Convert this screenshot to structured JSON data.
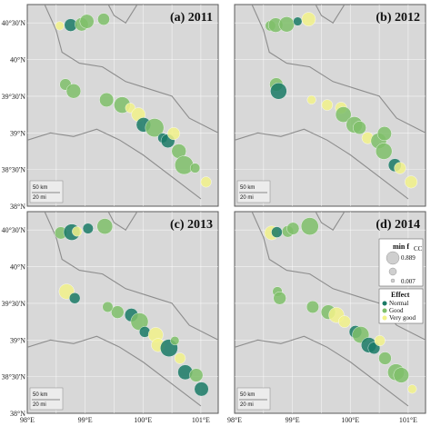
{
  "panels": [
    {
      "title": "(a) 2011",
      "year": 2011
    },
    {
      "title": "(b) 2012",
      "year": 2012
    },
    {
      "title": "(c) 2013",
      "year": 2013
    },
    {
      "title": "(d) 2014",
      "year": 2014
    }
  ],
  "axes": {
    "lat_ticks": [
      "40°30'N",
      "40°N",
      "39°30'N",
      "39°N",
      "38°30'N",
      "38°N"
    ],
    "lon_ticks": [
      "98°E",
      "99°E",
      "100°E",
      "101°E"
    ]
  },
  "scalebar": {
    "km_label": "50 km",
    "mi_label": "20 mi"
  },
  "legend": {
    "size_title": "min f",
    "size_title_sub": "CC",
    "size_max": "0.889",
    "size_min": "0.007",
    "effect_title": "Effect",
    "effects": [
      {
        "label": "Normal",
        "color": "#1a7a66"
      },
      {
        "label": "Good",
        "color": "#7fbf6a"
      },
      {
        "label": "Very good",
        "color": "#f2f28a"
      }
    ]
  },
  "colors": {
    "normal": "#1a7a66",
    "good": "#7fbf6a",
    "very_good": "#f2f28a",
    "background": "#d8d8d8",
    "road": "#8d8d8d"
  },
  "map_data": {
    "projection": "lon/lat",
    "lon_range": [
      98.0,
      101.3
    ],
    "lat_range": [
      38.0,
      40.75
    ],
    "sites": [
      {
        "lon": 98.6,
        "lat": 40.5,
        "s": 0.3,
        "e": 1
      },
      {
        "lon": 98.75,
        "lat": 40.45,
        "s": 0.5,
        "e": 0
      },
      {
        "lon": 98.9,
        "lat": 40.5,
        "s": 0.4,
        "e": 1
      },
      {
        "lon": 99.05,
        "lat": 40.48,
        "s": 0.3,
        "e": 0
      },
      {
        "lon": 99.3,
        "lat": 40.55,
        "s": 0.6,
        "e": 1
      },
      {
        "lon": 98.7,
        "lat": 39.7,
        "s": 0.4,
        "e": 1
      },
      {
        "lon": 98.8,
        "lat": 39.55,
        "s": 0.5,
        "e": 0
      },
      {
        "lon": 99.6,
        "lat": 39.4,
        "s": 0.5,
        "e": 1
      },
      {
        "lon": 99.8,
        "lat": 39.3,
        "s": 0.4,
        "e": 2
      },
      {
        "lon": 99.9,
        "lat": 39.25,
        "s": 0.6,
        "e": 1
      },
      {
        "lon": 100.05,
        "lat": 39.15,
        "s": 0.5,
        "e": 0
      },
      {
        "lon": 100.2,
        "lat": 39.05,
        "s": 0.7,
        "e": 1
      },
      {
        "lon": 100.3,
        "lat": 38.95,
        "s": 0.4,
        "e": 2
      },
      {
        "lon": 100.45,
        "lat": 38.85,
        "s": 0.6,
        "e": 0
      },
      {
        "lon": 100.6,
        "lat": 38.75,
        "s": 0.5,
        "e": 1
      },
      {
        "lon": 100.75,
        "lat": 38.6,
        "s": 0.7,
        "e": 0
      },
      {
        "lon": 100.9,
        "lat": 38.5,
        "s": 0.4,
        "e": 1
      },
      {
        "lon": 101.05,
        "lat": 38.35,
        "s": 0.3,
        "e": 2
      },
      {
        "lon": 100.55,
        "lat": 38.95,
        "s": 0.3,
        "e": 1
      },
      {
        "lon": 99.35,
        "lat": 39.45,
        "s": 0.3,
        "e": 1
      }
    ]
  }
}
